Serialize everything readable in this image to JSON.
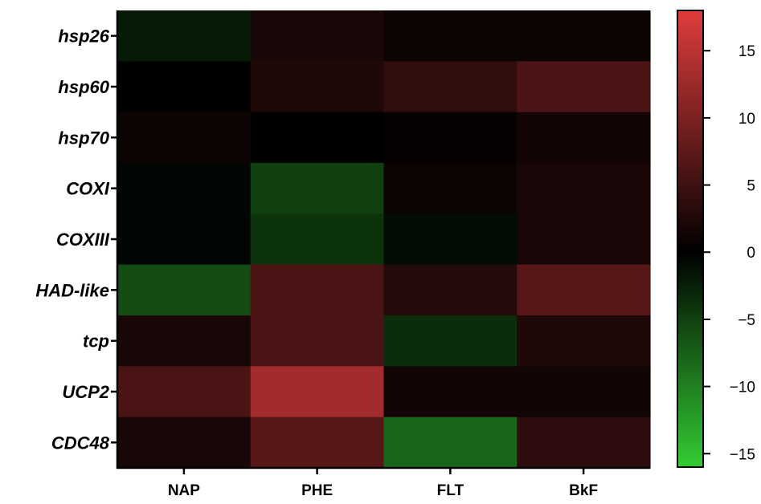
{
  "chart_data": {
    "type": "heatmap",
    "rows": [
      "hsp26",
      "hsp60",
      "hsp70",
      "COXI",
      "COXIII",
      "HAD-like",
      "tcp",
      "UCP2",
      "CDC48"
    ],
    "columns": [
      "NAP",
      "PHE",
      "FLT",
      "BkF"
    ],
    "values": [
      [
        -2,
        2,
        1,
        1
      ],
      [
        0,
        2.5,
        4,
        6
      ],
      [
        1,
        0,
        0.5,
        1.5
      ],
      [
        -0.5,
        -5,
        1,
        2
      ],
      [
        -0.5,
        -4,
        -1,
        2
      ],
      [
        -6,
        6,
        3,
        7
      ],
      [
        2,
        6,
        -3.5,
        2.5
      ],
      [
        6,
        13,
        1.5,
        1.5
      ],
      [
        2,
        7,
        -8,
        3.5
      ]
    ],
    "colorbar": {
      "min": -16,
      "max": 18,
      "ticks": [
        -15,
        -10,
        -5,
        0,
        5,
        10,
        15
      ],
      "tick_labels": [
        "−15",
        "−10",
        "−5",
        "0",
        "5",
        "10",
        "15"
      ],
      "colors": {
        "negative": "#33cc33",
        "zero": "#000000",
        "positive": "#e03c3c"
      }
    },
    "title": "",
    "xlabel": "",
    "ylabel": ""
  }
}
